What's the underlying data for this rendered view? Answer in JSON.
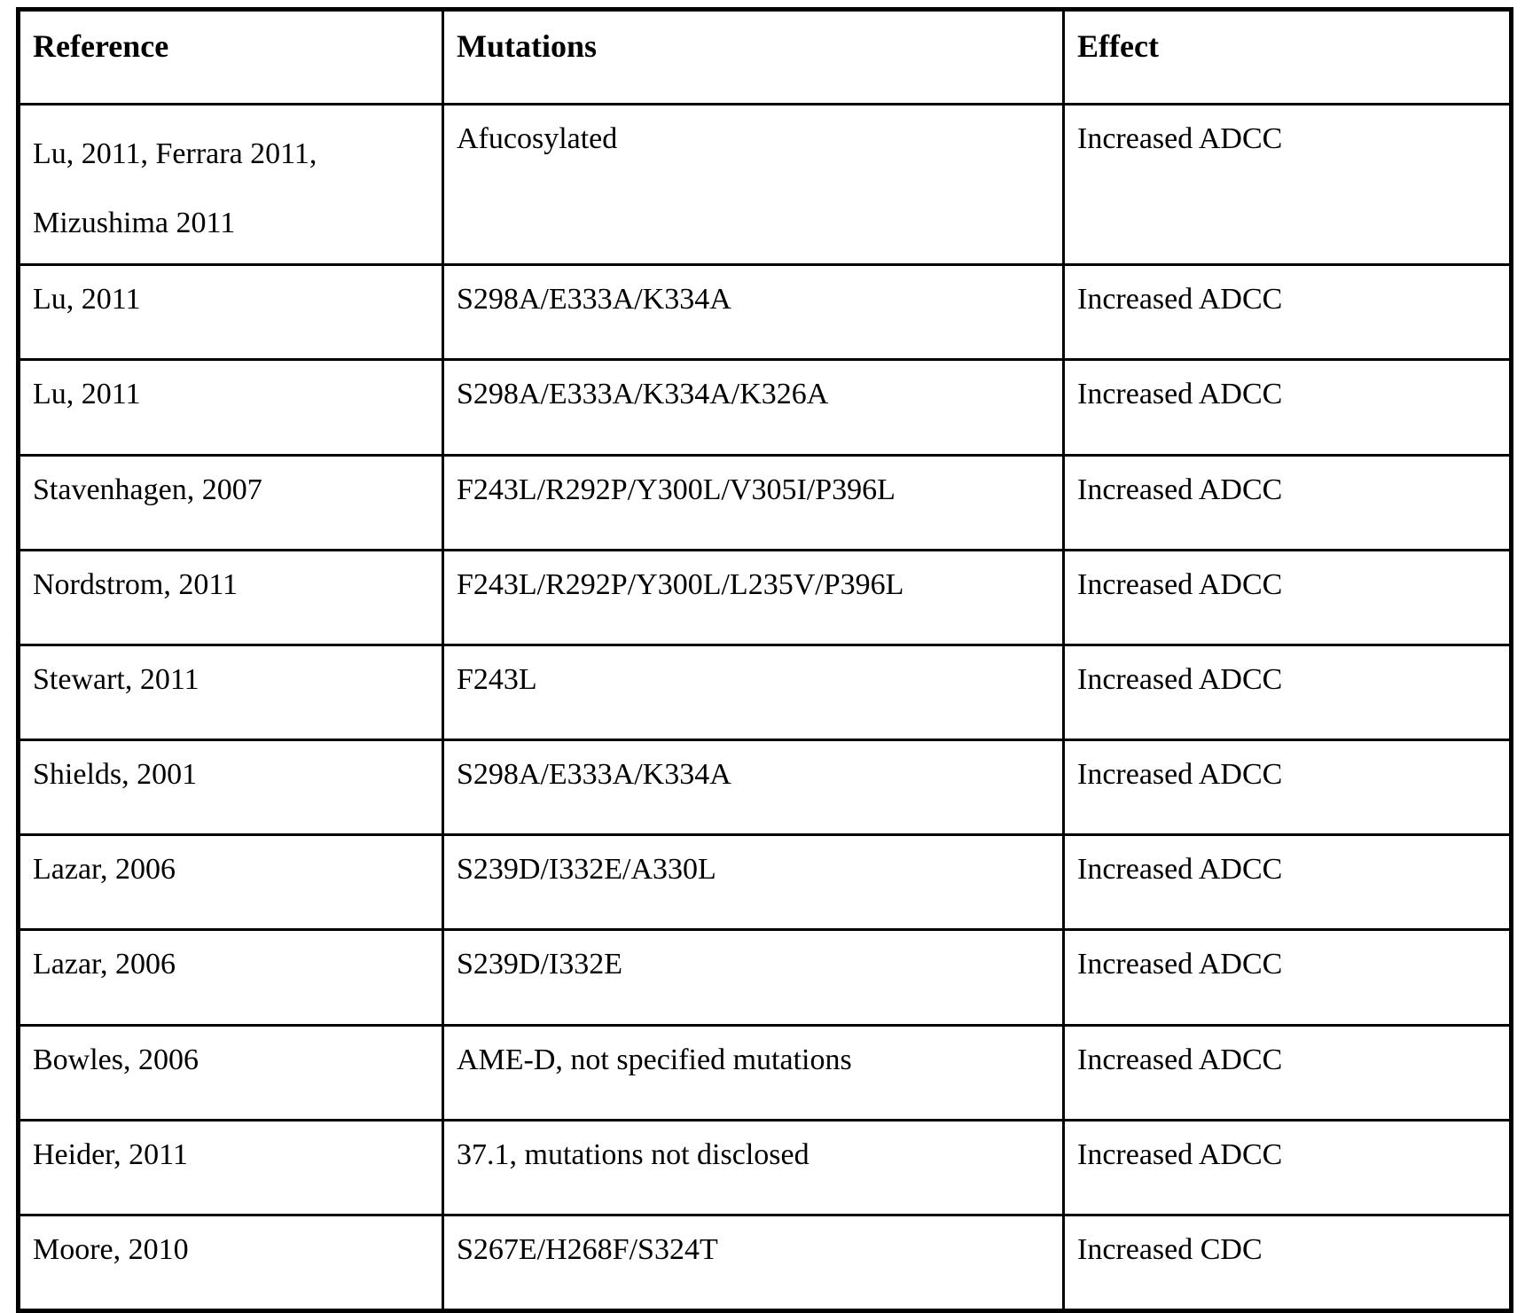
{
  "table": {
    "headers": [
      "Reference",
      "Mutations",
      "Effect"
    ],
    "rows": [
      {
        "reference": "Lu, 2011, Ferrara 2011, Mizushima 2011",
        "mutations": "Afucosylated",
        "effect": "Increased ADCC"
      },
      {
        "reference": "Lu, 2011",
        "mutations": "S298A/E333A/K334A",
        "effect": "Increased ADCC"
      },
      {
        "reference": "Lu, 2011",
        "mutations": "S298A/E333A/K334A/K326A",
        "effect": "Increased ADCC"
      },
      {
        "reference": "Stavenhagen, 2007",
        "mutations": "F243L/R292P/Y300L/V305I/P396L",
        "effect": "Increased ADCC"
      },
      {
        "reference": "Nordstrom, 2011",
        "mutations": "F243L/R292P/Y300L/L235V/P396L",
        "effect": "Increased ADCC"
      },
      {
        "reference": "Stewart, 2011",
        "mutations": "F243L",
        "effect": "Increased ADCC"
      },
      {
        "reference": "Shields, 2001",
        "mutations": "S298A/E333A/K334A",
        "effect": "Increased ADCC"
      },
      {
        "reference": "Lazar, 2006",
        "mutations": "S239D/I332E/A330L",
        "effect": "Increased ADCC"
      },
      {
        "reference": "Lazar, 2006",
        "mutations": "S239D/I332E",
        "effect": "Increased ADCC"
      },
      {
        "reference": "Bowles, 2006",
        "mutations": "AME-D, not specified mutations",
        "effect": "Increased ADCC"
      },
      {
        "reference": "Heider, 2011",
        "mutations": "37.1, mutations not disclosed",
        "effect": "Increased ADCC"
      },
      {
        "reference": "Moore, 2010",
        "mutations": "S267E/H268F/S324T",
        "effect": "Increased CDC"
      }
    ],
    "colors": {
      "border": "#000000",
      "text": "#000000",
      "background": "#ffffff"
    }
  }
}
